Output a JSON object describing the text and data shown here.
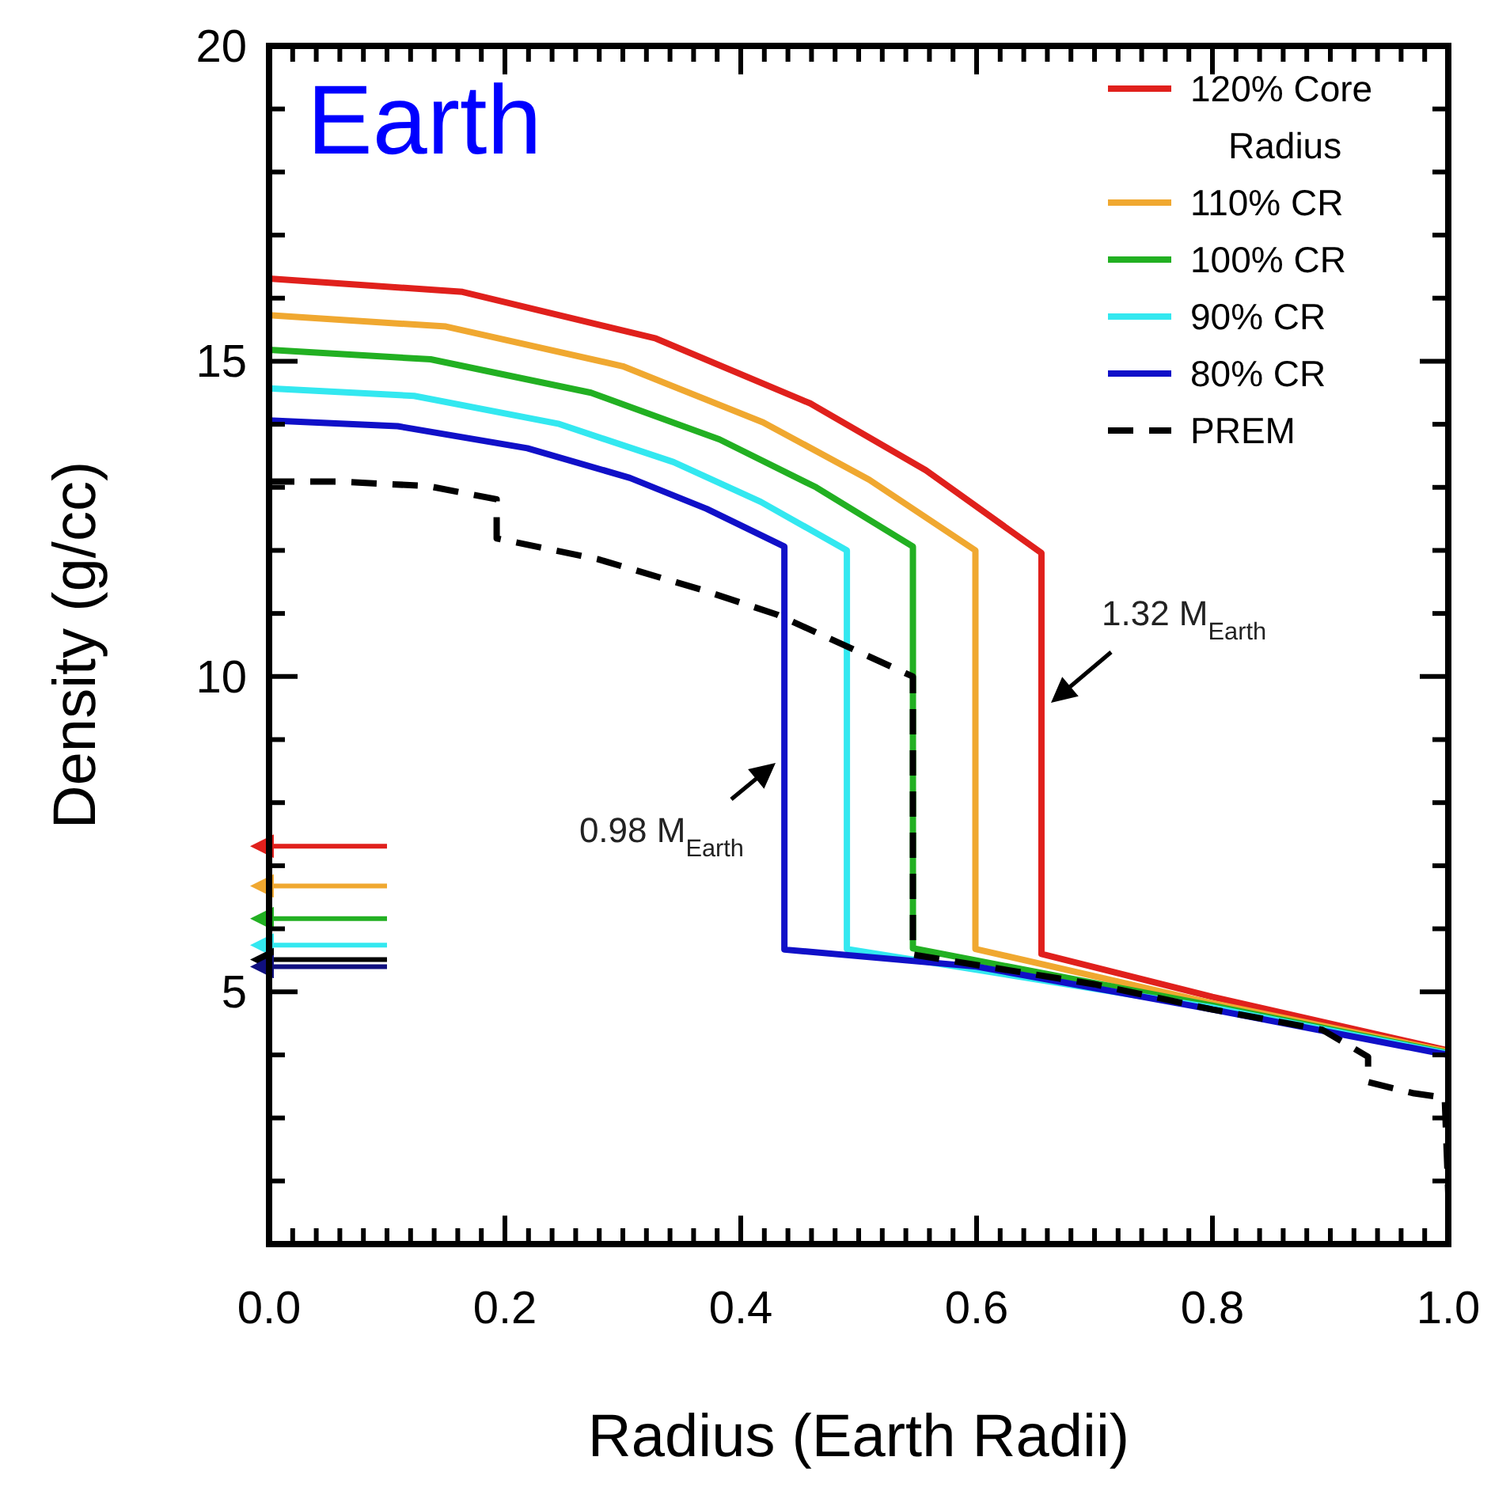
{
  "chart_data": {
    "type": "line",
    "title": "Earth",
    "xlabel": "Radius (Earth Radii)",
    "ylabel": "Density (g/cc)",
    "xlim": [
      0,
      1
    ],
    "ylim": [
      1,
      20
    ],
    "xticks": [
      {
        "value": 0,
        "label": "0.0"
      },
      {
        "value": 0.02,
        "label": null
      },
      {
        "value": 0.04,
        "label": null
      },
      {
        "value": 0.06,
        "label": null
      },
      {
        "value": 0.08,
        "label": null
      },
      {
        "value": 0.1,
        "label": null
      },
      {
        "value": 0.12,
        "label": null
      },
      {
        "value": 0.14,
        "label": null
      },
      {
        "value": 0.16,
        "label": null
      },
      {
        "value": 0.18,
        "label": null
      },
      {
        "value": 0.2,
        "label": "0.2"
      },
      {
        "value": 0.22,
        "label": null
      },
      {
        "value": 0.24,
        "label": null
      },
      {
        "value": 0.26,
        "label": null
      },
      {
        "value": 0.28,
        "label": null
      },
      {
        "value": 0.3,
        "label": null
      },
      {
        "value": 0.32,
        "label": null
      },
      {
        "value": 0.34,
        "label": null
      },
      {
        "value": 0.36,
        "label": null
      },
      {
        "value": 0.38,
        "label": null
      },
      {
        "value": 0.4,
        "label": "0.4"
      },
      {
        "value": 0.42,
        "label": null
      },
      {
        "value": 0.44,
        "label": null
      },
      {
        "value": 0.46,
        "label": null
      },
      {
        "value": 0.48,
        "label": null
      },
      {
        "value": 0.5,
        "label": null
      },
      {
        "value": 0.52,
        "label": null
      },
      {
        "value": 0.54,
        "label": null
      },
      {
        "value": 0.56,
        "label": null
      },
      {
        "value": 0.58,
        "label": null
      },
      {
        "value": 0.6,
        "label": "0.6"
      },
      {
        "value": 0.62,
        "label": null
      },
      {
        "value": 0.64,
        "label": null
      },
      {
        "value": 0.66,
        "label": null
      },
      {
        "value": 0.68,
        "label": null
      },
      {
        "value": 0.7,
        "label": null
      },
      {
        "value": 0.72,
        "label": null
      },
      {
        "value": 0.74,
        "label": null
      },
      {
        "value": 0.76,
        "label": null
      },
      {
        "value": 0.78,
        "label": null
      },
      {
        "value": 0.8,
        "label": "0.8"
      },
      {
        "value": 0.82,
        "label": null
      },
      {
        "value": 0.84,
        "label": null
      },
      {
        "value": 0.86,
        "label": null
      },
      {
        "value": 0.88,
        "label": null
      },
      {
        "value": 0.9,
        "label": null
      },
      {
        "value": 0.92,
        "label": null
      },
      {
        "value": 0.94,
        "label": null
      },
      {
        "value": 0.96,
        "label": null
      },
      {
        "value": 0.98,
        "label": null
      },
      {
        "value": 1,
        "label": "1.0"
      }
    ],
    "yticks": [
      {
        "value": 1,
        "label": null
      },
      {
        "value": 2,
        "label": null
      },
      {
        "value": 3,
        "label": null
      },
      {
        "value": 4,
        "label": null
      },
      5,
      {
        "value": 6,
        "label": null
      },
      {
        "value": 7,
        "label": null
      },
      {
        "value": 8,
        "label": null
      },
      {
        "value": 9,
        "label": null
      },
      10,
      {
        "value": 11,
        "label": null
      },
      {
        "value": 12,
        "label": null
      },
      {
        "value": 13,
        "label": null
      },
      {
        "value": 14,
        "label": null
      },
      15,
      {
        "value": 16,
        "label": null
      },
      {
        "value": 17,
        "label": null
      },
      {
        "value": 18,
        "label": null
      },
      {
        "value": 19,
        "label": null
      },
      20
    ],
    "legend": "top right",
    "series": [
      {
        "name": "120% Core Radius",
        "color": "#e0201c",
        "x": [
          0,
          0.164,
          0.328,
          0.459,
          0.557,
          0.655,
          0.655,
          0.8,
          1.0
        ],
        "values": [
          16.31,
          16.1,
          15.36,
          14.33,
          13.27,
          11.96,
          5.6,
          4.92,
          4.07
        ]
      },
      {
        "name": "110% CR",
        "color": "#f0a830",
        "x": [
          0,
          0.15,
          0.3,
          0.419,
          0.509,
          0.599,
          0.599,
          0.8,
          1.0
        ],
        "values": [
          15.73,
          15.55,
          14.92,
          14.03,
          13.12,
          12.0,
          5.68,
          4.82,
          4.05
        ]
      },
      {
        "name": "100% CR",
        "color": "#22b022",
        "x": [
          0,
          0.137,
          0.273,
          0.382,
          0.464,
          0.546,
          0.546,
          0.8,
          1.0
        ],
        "values": [
          15.18,
          15.03,
          14.5,
          13.76,
          13.0,
          12.06,
          5.69,
          4.78,
          4.03
        ]
      },
      {
        "name": "90% CR",
        "color": "#33e8f0",
        "x": [
          0,
          0.123,
          0.245,
          0.343,
          0.417,
          0.49,
          0.49,
          0.8,
          1.0
        ],
        "values": [
          14.57,
          14.45,
          14.01,
          13.4,
          12.77,
          12.0,
          5.68,
          4.75,
          4.02
        ]
      },
      {
        "name": "80% CR",
        "color": "#1010c8",
        "x": [
          0,
          0.109,
          0.219,
          0.306,
          0.371,
          0.437,
          0.437,
          0.6,
          0.8,
          1.0
        ],
        "values": [
          14.06,
          13.97,
          13.62,
          13.15,
          12.66,
          12.06,
          5.67,
          5.4,
          4.72,
          4.0
        ]
      },
      {
        "name": "PREM",
        "color": "#000000",
        "line_style": "dashed",
        "x": [
          0,
          0.061,
          0.135,
          0.193,
          0.193,
          0.279,
          0.366,
          0.431,
          0.546,
          0.546,
          0.7,
          0.8,
          0.893,
          0.932,
          0.932,
          0.971,
          0.997,
          1.0
        ],
        "values": [
          13.09,
          13.09,
          13.02,
          12.81,
          12.19,
          11.86,
          11.38,
          10.98,
          10.0,
          5.59,
          5.12,
          4.72,
          4.4,
          3.97,
          3.57,
          3.39,
          3.32,
          1.8
        ]
      },
      {
        "color": "#e0201c",
        "x": [
          0.1,
          0
        ],
        "values": [
          7.31,
          7.31
        ]
      },
      {
        "color": "#f0a830",
        "x": [
          0.1,
          0
        ],
        "values": [
          6.68,
          6.68
        ]
      },
      {
        "color": "#22b022",
        "x": [
          0.1,
          0
        ],
        "values": [
          6.16,
          6.16
        ]
      },
      {
        "color": "#33e8f0",
        "x": [
          0.1,
          0
        ],
        "values": [
          5.74,
          5.74
        ]
      },
      {
        "color": "#000000",
        "x": [
          0.1,
          0
        ],
        "values": [
          5.51,
          5.51
        ]
      },
      {
        "color": "#101080",
        "x": [
          0.1,
          0
        ],
        "values": [
          5.4,
          5.4
        ]
      }
    ],
    "annotations": [
      "0.98 M$_{Earth}$",
      "1.32 M$_{Earth}$"
    ]
  }
}
